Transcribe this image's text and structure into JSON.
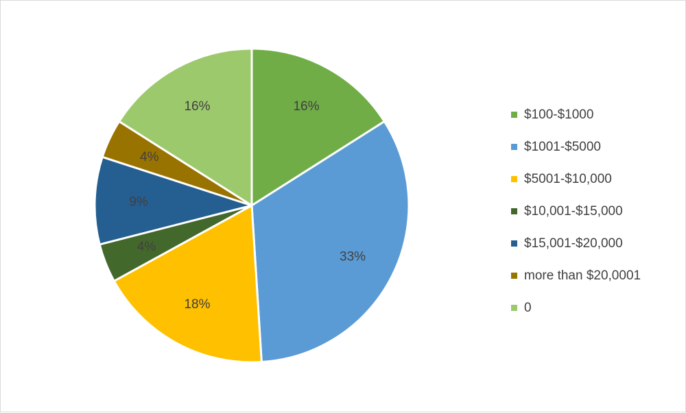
{
  "chart_data": {
    "type": "pie",
    "categories": [
      "$100-$1000",
      "$1001-$5000",
      "$5001-$10,000",
      "$10,001-$15,000",
      "$15,001-$20,000",
      "more than $20,0001",
      "0"
    ],
    "values": [
      16,
      33,
      18,
      4,
      9,
      4,
      16
    ],
    "data_labels": [
      "16%",
      "33%",
      "18%",
      "4%",
      "9%",
      "4%",
      "16%"
    ],
    "colors": [
      "#70ad47",
      "#5b9bd5",
      "#ffc000",
      "#43682b",
      "#255e91",
      "#997300",
      "#9dc96d"
    ],
    "title": "",
    "legend_position": "right",
    "start": "top",
    "direction": "clockwise"
  }
}
